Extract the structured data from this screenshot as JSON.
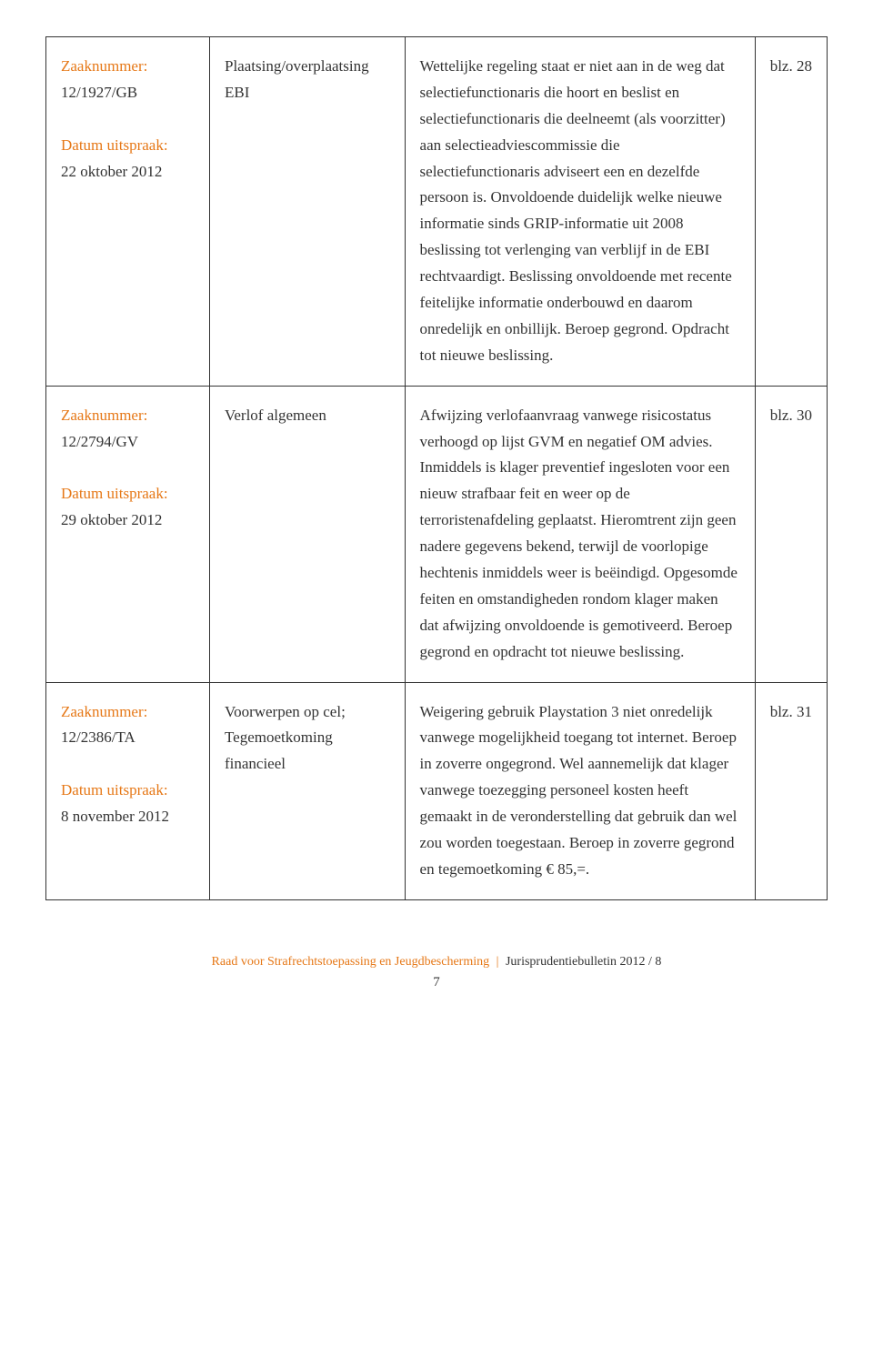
{
  "rows": [
    {
      "zaaknummer_label": "Zaaknummer:",
      "zaaknummer": "12/1927/GB",
      "datum_label": "Datum uitspraak:",
      "datum": "22 oktober 2012",
      "col2": "Plaatsing/overplaatsing EBI",
      "col3": "Wettelijke regeling staat er niet aan in de weg dat selectiefunctionaris die hoort en beslist en selectiefunctionaris die deelneemt (als voorzitter) aan selectieadviescommissie die selectiefunctionaris adviseert een en dezelfde persoon is. Onvoldoende duidelijk welke nieuwe informatie sinds GRIP-informatie uit 2008 beslissing tot verlenging van verblijf in de EBI rechtvaardigt. Beslissing onvoldoende met recente feitelijke informatie onderbouwd en daarom onredelijk en onbillijk. Beroep gegrond. Opdracht tot nieuwe beslissing.",
      "col4": "blz. 28"
    },
    {
      "zaaknummer_label": "Zaaknummer:",
      "zaaknummer": "12/2794/GV",
      "datum_label": "Datum uitspraak:",
      "datum": "29 oktober 2012",
      "col2": "Verlof algemeen",
      "col3": "Afwijzing verlofaanvraag vanwege risicostatus verhoogd op lijst GVM en negatief OM advies. Inmiddels is klager preventief ingesloten voor een nieuw strafbaar feit en weer op de terroristenafdeling geplaatst. Hieromtrent zijn geen nadere gegevens bekend, terwijl de voorlopige hechtenis inmiddels weer is beëindigd. Opgesomde feiten en omstandigheden rondom klager maken dat afwijzing onvoldoende is gemotiveerd. Beroep gegrond en opdracht tot nieuwe beslissing.",
      "col4": "blz. 30"
    },
    {
      "zaaknummer_label": "Zaaknummer:",
      "zaaknummer": "12/2386/TA",
      "datum_label": "Datum uitspraak:",
      "datum": "8 november 2012",
      "col2": "Voorwerpen op cel; Tegemoetkoming financieel",
      "col3": "Weigering gebruik Playstation 3 niet onredelijk vanwege mogelijkheid toegang tot internet. Beroep in zoverre ongegrond. Wel aannemelijk dat klager vanwege toezegging personeel kosten heeft gemaakt in de veronderstelling dat gebruik dan wel zou worden toegestaan. Beroep in zoverre gegrond en tegemoetkoming € 85,=.",
      "col4": "blz. 31"
    }
  ],
  "footer": {
    "org": "Raad voor Strafrechtstoepassing en Jeugdbescherming",
    "bulletin": "Jurisprudentiebulletin 2012 / 8",
    "page": "7"
  },
  "colors": {
    "orange": "#e67817",
    "text": "#333333",
    "border": "#333333",
    "background": "#ffffff"
  }
}
